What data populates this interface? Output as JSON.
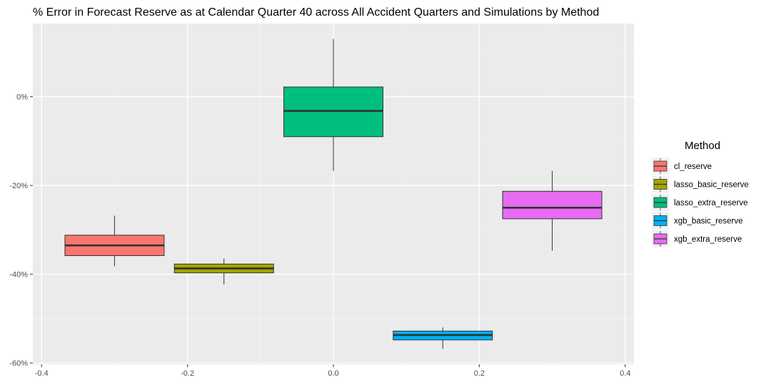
{
  "chart_data": {
    "type": "boxplot",
    "title": "% Error in Forecast Reserve as at Calendar Quarter 40 across All Accident Quarters and Simulations by Method",
    "xlabel": "",
    "ylabel": "",
    "xlim": [
      -0.4,
      0.4
    ],
    "ylim": [
      -0.6,
      0.1
    ],
    "x_ticks": [
      -0.4,
      -0.2,
      0.0,
      0.2,
      0.4
    ],
    "x_tick_labels": [
      "-0.4",
      "-0.2",
      "0.0",
      "0.2",
      "0.4"
    ],
    "y_ticks": [
      -0.6,
      -0.4,
      -0.2,
      0.0
    ],
    "y_tick_labels": [
      "-60%",
      "-40%",
      "-20%",
      "0%"
    ],
    "grid": true,
    "legend": {
      "title": "Method",
      "position": "right"
    },
    "series": [
      {
        "name": "cl_reserve",
        "color": "#F8766D",
        "x": -0.3,
        "whisker_low": -0.382,
        "q1": -0.358,
        "median": -0.335,
        "q3": -0.312,
        "whisker_high": -0.268
      },
      {
        "name": "lasso_basic_reserve",
        "color": "#A3A500",
        "x": -0.15,
        "whisker_low": -0.423,
        "q1": -0.397,
        "median": -0.387,
        "q3": -0.377,
        "whisker_high": -0.365
      },
      {
        "name": "lasso_extra_reserve",
        "color": "#00BF7D",
        "x": 0.0,
        "whisker_low": -0.167,
        "q1": -0.09,
        "median": -0.032,
        "q3": 0.022,
        "whisker_high": 0.13
      },
      {
        "name": "xgb_basic_reserve",
        "color": "#00B0F6",
        "x": 0.15,
        "whisker_low": -0.568,
        "q1": -0.548,
        "median": -0.537,
        "q3": -0.528,
        "whisker_high": -0.52
      },
      {
        "name": "xgb_extra_reserve",
        "color": "#E76BF3",
        "x": 0.3,
        "whisker_low": -0.347,
        "q1": -0.275,
        "median": -0.25,
        "q3": -0.213,
        "whisker_high": -0.167
      }
    ]
  }
}
